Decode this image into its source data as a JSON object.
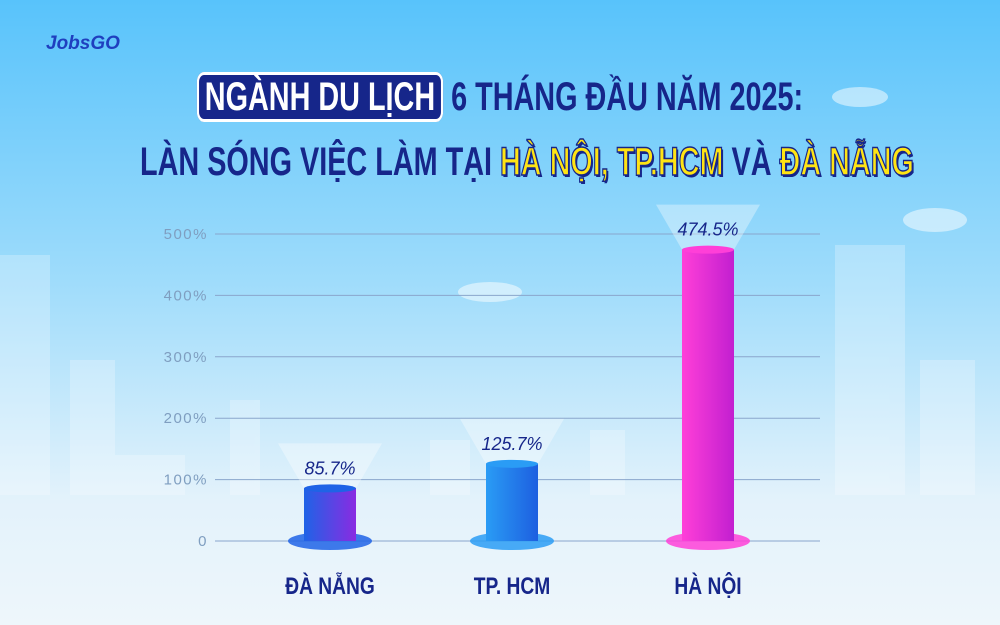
{
  "brand": "JobsGO",
  "chart_data": {
    "type": "bar",
    "title": [
      [
        "NGÀNH DU LỊCH",
        "6 THÁNG ĐẦU NĂM 2025:"
      ],
      [
        "LÀN SÓNG VIỆC LÀM TẠI",
        "HÀ NỘI, TP.HCM",
        "VÀ",
        "ĐÀ NẴNG"
      ]
    ],
    "categories": [
      "ĐÀ NẴNG",
      "TP. HCM",
      "HÀ NỘI"
    ],
    "values": [
      85.7,
      125.7,
      474.5
    ],
    "value_labels": [
      "85.7%",
      "125.7%",
      "474.5%"
    ],
    "colors": [
      [
        "#1f63e6",
        "#8a2be2"
      ],
      [
        "#2a9cf5",
        "#1d5fe0"
      ],
      [
        "#ff3fd8",
        "#c21fd0"
      ]
    ],
    "ylim": [
      0,
      500
    ],
    "yticks": [
      0,
      {
        "value": 100,
        "label": "100%"
      },
      {
        "value": 200,
        "label": "200%"
      },
      {
        "value": 300,
        "label": "300%"
      },
      {
        "value": 400,
        "label": "400%"
      },
      {
        "value": 500,
        "label": "500%"
      }
    ],
    "grid": true
  }
}
